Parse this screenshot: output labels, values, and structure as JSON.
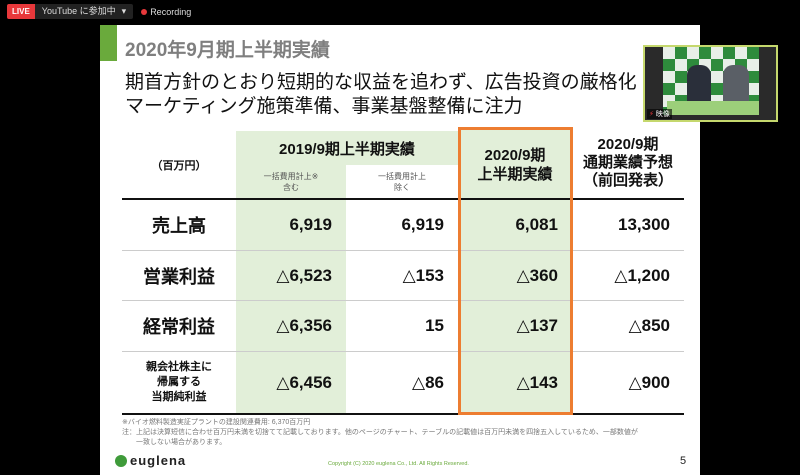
{
  "topbar": {
    "live": "LIVE",
    "stream": "YouTube に参加中",
    "dropdown_icon": "caret-down-icon",
    "recording": "Recording"
  },
  "slide": {
    "title": "2020年9月期上半期実績",
    "subtitle_lines": [
      "期首方針のとおり短期的な収益を追わず、広告投資の厳格化",
      "マーケティング施策準備、事業基盤整備に注力"
    ],
    "table": {
      "unit": "（百万円）",
      "group_header": "2019/9期上半期実績",
      "sub_headers": [
        "一括費用計上※\n含む",
        "一括費用計上\n除く"
      ],
      "col3": "2020/9期\n上半期実績",
      "col4": "2020/9期\n通期業績予想\n（前回発表）",
      "rows": [
        {
          "label": "売上高",
          "values": [
            "6,919",
            "6,919",
            "6,081",
            "13,300"
          ]
        },
        {
          "label": "営業利益",
          "values": [
            "△6,523",
            "△153",
            "△360",
            "△1,200"
          ]
        },
        {
          "label": "経常利益",
          "values": [
            "△6,356",
            "15",
            "△137",
            "△850"
          ]
        },
        {
          "label": "親会社株主に\n帰属する\n当期純利益",
          "values": [
            "△6,456",
            "△86",
            "△143",
            "△900"
          ]
        }
      ]
    },
    "notes": [
      "※バイオ燃料製造実証プラントの建設関連費用: 6,370百万円",
      "注：上記は決算短信に合わせ百万円未満を切捨てて記載しております。他のページのチャート、テーブルの記載値は百万円未満を四捨五入しているため、一部数値が",
      "　　一致しない場合があります。"
    ],
    "logo": "euglena",
    "copyright": "Copyright (C) 2020 euglena Co., Ltd. All Rights Reserved.",
    "page_number": "5"
  },
  "video": {
    "label": "映像",
    "colors": {
      "accent": "#6aaa3c",
      "highlight": "#ed7d31",
      "green_fill": "#e2efd9"
    }
  }
}
